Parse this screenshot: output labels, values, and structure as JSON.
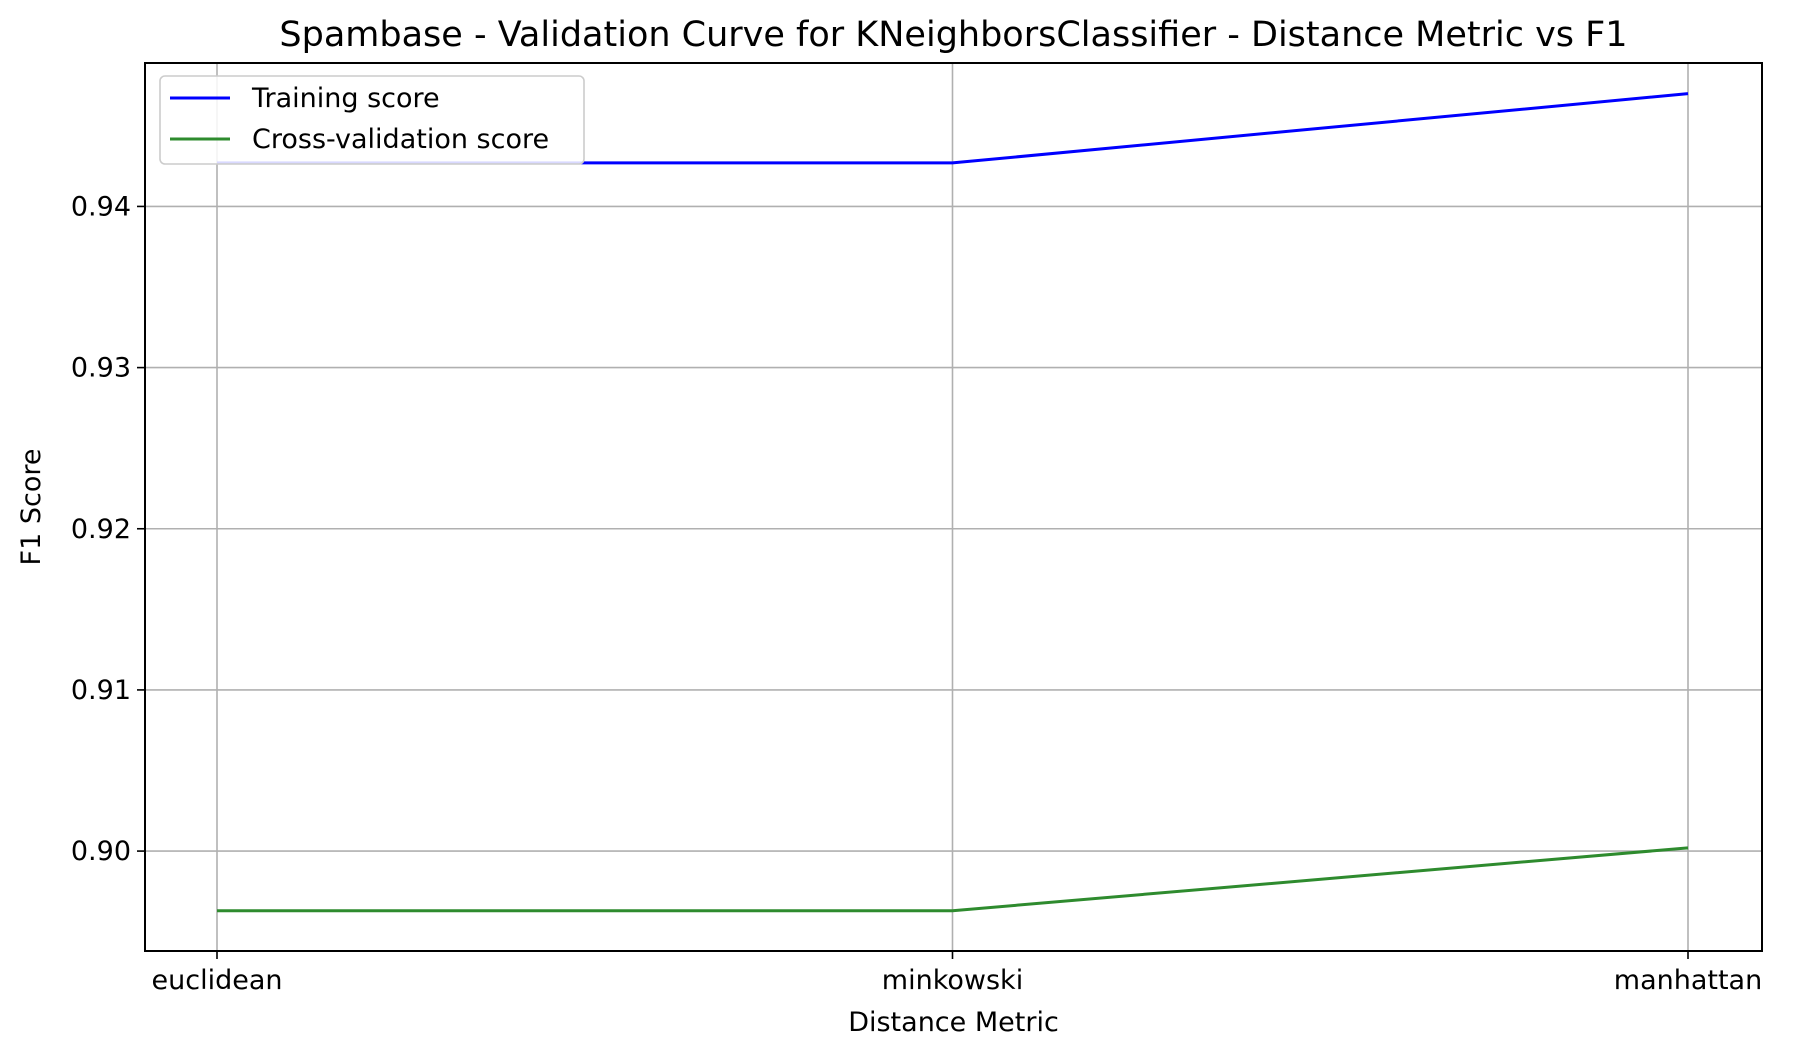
{
  "chart_data": {
    "type": "line",
    "title": "Spambase - Validation Curve for KNeighborsClassifier - Distance Metric vs F1",
    "xlabel": "Distance Metric",
    "ylabel": "F1 Score",
    "categories": [
      "euclidean",
      "minkowski",
      "manhattan"
    ],
    "series": [
      {
        "name": "Training score",
        "color": "#0000ff",
        "values": [
          0.9427,
          0.9427,
          0.947
        ]
      },
      {
        "name": "Cross-validation score",
        "color": "#2e8b2e",
        "values": [
          0.8963,
          0.8963,
          0.9002
        ]
      }
    ],
    "ylim": [
      0.8938,
      0.9489
    ],
    "yticks": [
      0.9,
      0.91,
      0.92,
      0.93,
      0.94
    ],
    "ytick_labels": [
      "0.90",
      "0.91",
      "0.92",
      "0.93",
      "0.94"
    ],
    "grid": true,
    "legend_position": "top-left"
  }
}
